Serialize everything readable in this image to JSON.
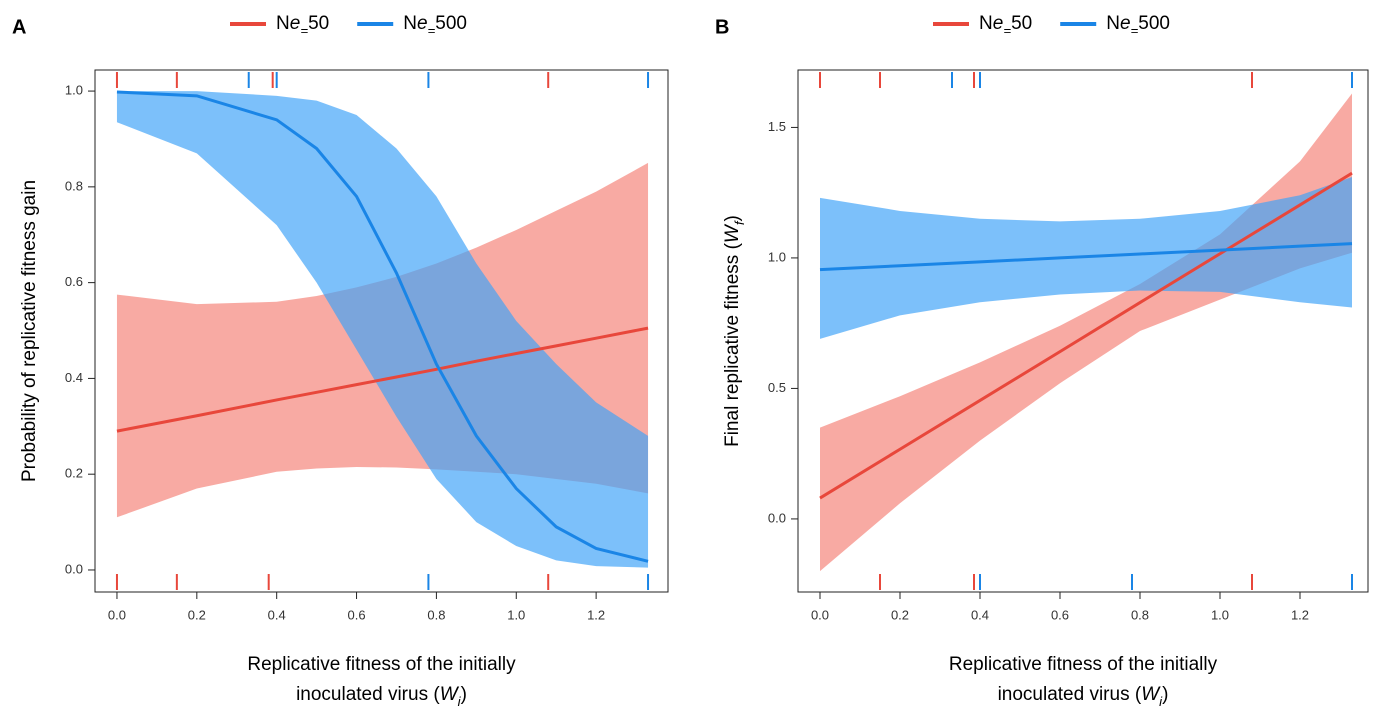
{
  "chart_data": [
    {
      "type": "line",
      "panel_label": "A",
      "y_label": "Probability of replicative fitness gain",
      "x_label": [
        "Replicative fitness of the initially",
        "inoculated virus (Wi)"
      ],
      "xlim": [
        -0.055,
        1.38
      ],
      "ylim": [
        -0.046,
        1.044
      ],
      "xticks": [
        {
          "value": 0,
          "label": "0.0"
        },
        0.2,
        0.4,
        0.6,
        0.8,
        {
          "value": 1,
          "label": "1.0"
        },
        1.2
      ],
      "yticks": [
        {
          "value": 0,
          "label": "0.0"
        },
        0.2,
        0.4,
        0.6,
        0.8,
        {
          "value": 1,
          "label": "1.0"
        }
      ],
      "x": [
        0,
        0.2,
        0.4,
        0.5,
        0.6,
        0.7,
        0.8,
        0.9,
        1.0,
        1.1,
        1.2,
        1.33
      ],
      "series": [
        {
          "name": "Ne=50",
          "color": "#e8473b",
          "band_color": "#f3766a",
          "values": [
            0.29,
            0.322,
            0.355,
            0.371,
            0.387,
            0.403,
            0.419,
            0.436,
            0.452,
            0.468,
            0.484,
            0.505
          ],
          "upper": [
            0.575,
            0.555,
            0.56,
            0.572,
            0.59,
            0.612,
            0.64,
            0.673,
            0.71,
            0.75,
            0.79,
            0.85
          ],
          "lower": [
            0.11,
            0.17,
            0.205,
            0.212,
            0.215,
            0.214,
            0.21,
            0.205,
            0.2,
            0.19,
            0.18,
            0.16
          ],
          "rug_top": [
            0,
            0.15,
            0.39,
            1.08
          ],
          "rug_bottom": [
            0,
            0.15,
            0.38,
            1.08
          ]
        },
        {
          "name": "Ne=500",
          "color": "#1a85e6",
          "band_color": "#3ea2f7",
          "values": [
            0.998,
            0.99,
            0.94,
            0.88,
            0.78,
            0.62,
            0.43,
            0.28,
            0.17,
            0.09,
            0.045,
            0.018
          ],
          "upper": [
            1.0,
            1.0,
            0.99,
            0.98,
            0.95,
            0.88,
            0.78,
            0.64,
            0.52,
            0.43,
            0.35,
            0.28
          ],
          "lower": [
            0.935,
            0.87,
            0.72,
            0.6,
            0.46,
            0.32,
            0.19,
            0.1,
            0.05,
            0.02,
            0.008,
            0.005
          ],
          "rug_top": [
            0.33,
            0.4,
            0.78,
            1.33
          ],
          "rug_bottom": [
            0.78,
            1.33
          ]
        }
      ]
    },
    {
      "type": "line",
      "panel_label": "B",
      "y_label": "Final replicative fitness (Wf)",
      "x_label": [
        "Replicative fitness of the initially",
        "inoculated virus (Wi)"
      ],
      "xlim": [
        -0.055,
        1.37
      ],
      "ylim": [
        -0.28,
        1.72
      ],
      "xticks": [
        {
          "value": 0,
          "label": "0.0"
        },
        0.2,
        0.4,
        0.6,
        0.8,
        {
          "value": 1,
          "label": "1.0"
        },
        1.2
      ],
      "yticks": [
        {
          "value": 0,
          "label": "0.0"
        },
        0.5,
        {
          "value": 1,
          "label": "1.0"
        },
        1.5
      ],
      "x": [
        0,
        0.2,
        0.4,
        0.6,
        0.8,
        1.0,
        1.2,
        1.33
      ],
      "series": [
        {
          "name": "Ne=50",
          "color": "#e8473b",
          "band_color": "#f3766a",
          "values": [
            0.08,
            0.267,
            0.454,
            0.641,
            0.829,
            1.016,
            1.203,
            1.325
          ],
          "upper": [
            0.35,
            0.47,
            0.6,
            0.74,
            0.9,
            1.09,
            1.37,
            1.63
          ],
          "lower": [
            -0.2,
            0.06,
            0.3,
            0.52,
            0.72,
            0.84,
            0.96,
            1.02
          ],
          "rug_top": [
            0,
            0.15,
            0.385,
            1.08
          ],
          "rug_bottom": [
            0.15,
            0.385,
            1.08
          ]
        },
        {
          "name": "Ne=500",
          "color": "#1a85e6",
          "band_color": "#3ea2f7",
          "values": [
            0.955,
            0.97,
            0.985,
            1.0,
            1.015,
            1.03,
            1.045,
            1.055
          ],
          "upper": [
            1.23,
            1.18,
            1.15,
            1.14,
            1.15,
            1.18,
            1.24,
            1.31
          ],
          "lower": [
            0.69,
            0.78,
            0.83,
            0.86,
            0.875,
            0.87,
            0.83,
            0.81
          ],
          "rug_top": [
            0.33,
            0.4,
            1.33
          ],
          "rug_bottom": [
            0.4,
            0.78,
            1.33
          ]
        }
      ]
    }
  ]
}
